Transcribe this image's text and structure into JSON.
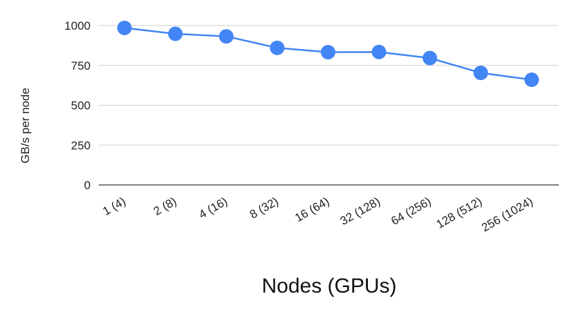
{
  "chart_data": {
    "type": "line",
    "xlabel": "Nodes (GPUs)",
    "ylabel": "GB/s per node",
    "categories": [
      "1 (4)",
      "2 (8)",
      "4 (16)",
      "8 (32)",
      "16 (64)",
      "32 (128)",
      "64 (256)",
      "128 (512)",
      "256 (1024)"
    ],
    "series": [
      {
        "values": [
          985,
          948,
          932,
          860,
          833,
          834,
          796,
          703,
          660
        ]
      }
    ],
    "ylim": [
      0,
      1000
    ],
    "yticks": [
      "0",
      "250",
      "500",
      "750",
      "1000"
    ],
    "grid": true,
    "legend": "none",
    "colors": {
      "series": "#4285f4",
      "grid": "#cfcfcf",
      "baseline": "#333333"
    }
  }
}
